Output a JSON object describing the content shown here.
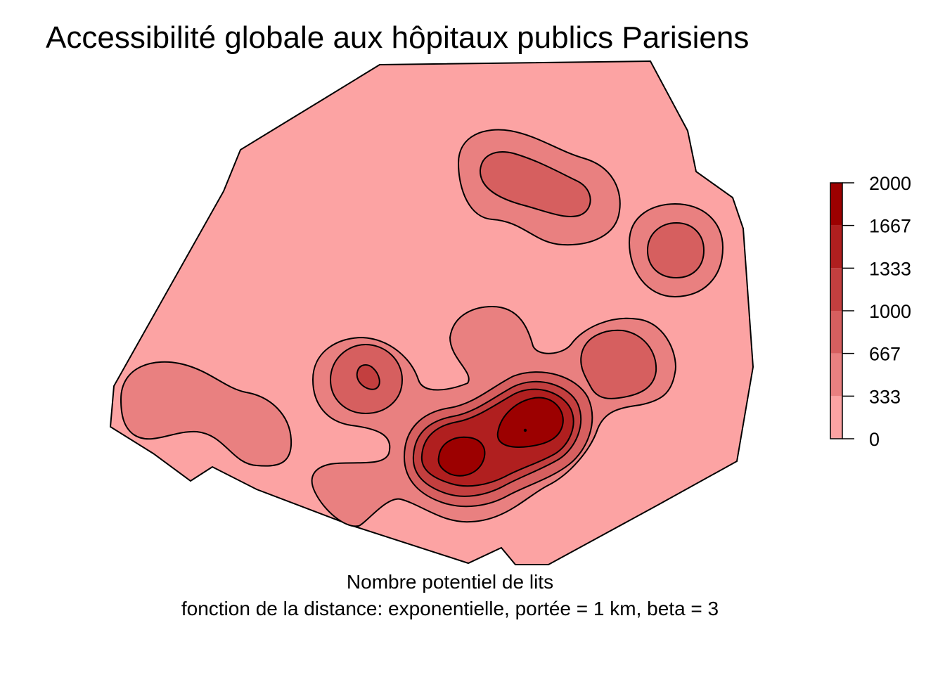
{
  "title": "Accessibilité globale aux hôpitaux publics Parisiens",
  "caption": {
    "line1": "Nombre potentiel de lits",
    "line2": "fonction de la distance: exponentielle, portée = 1 km, beta = 3"
  },
  "legend": {
    "breaks": [
      "2000",
      "1667",
      "1333",
      "1000",
      "667",
      "333",
      "0"
    ],
    "class_colors": [
      "#fca3a3",
      "#e98080",
      "#d65f5f",
      "#c33f3f",
      "#b01f1f",
      "#9c0000"
    ],
    "placement": "right"
  },
  "colors": {
    "background": "#fca3a3",
    "level1": "#e98080",
    "level2": "#d65f5f",
    "level3": "#c33f3f",
    "level4": "#b01f1f",
    "level5": "#9c0000",
    "outline": "#000000"
  }
}
